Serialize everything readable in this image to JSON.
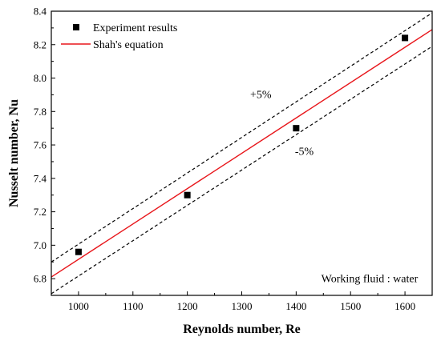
{
  "chart_data": {
    "type": "line",
    "xlabel": "Reynolds number, Re",
    "ylabel": "Nusselt number, Nu",
    "xlim": [
      950,
      1650
    ],
    "ylim": [
      6.7,
      8.4
    ],
    "x_ticks": [
      1000,
      1100,
      1200,
      1300,
      1400,
      1500,
      1600
    ],
    "x_tick_labels": [
      "1000",
      "1100",
      "1200",
      "1300",
      "1400",
      "1500",
      "1600"
    ],
    "y_ticks": [
      6.8,
      7.0,
      7.2,
      7.4,
      7.6,
      7.8,
      8.0,
      8.2,
      8.4
    ],
    "y_tick_labels": [
      "6.8",
      "7.0",
      "7.2",
      "7.4",
      "7.6",
      "7.8",
      "8.0",
      "8.2",
      "8.4"
    ],
    "grid": false,
    "legend_position": "top-left",
    "series": [
      {
        "name": "Experiment results",
        "kind": "scatter",
        "marker": "square",
        "color": "#000000",
        "x": [
          1000,
          1200,
          1400,
          1600
        ],
        "y": [
          6.96,
          7.3,
          7.7,
          8.24
        ]
      },
      {
        "name": "Shah's equation",
        "kind": "line",
        "color": "#e8161b",
        "x": [
          950,
          1650
        ],
        "y": [
          6.81,
          8.29
        ]
      },
      {
        "kind": "line",
        "style": "dashed",
        "color": "#000000",
        "x": [
          950,
          1650
        ],
        "y": [
          6.9,
          8.39
        ]
      },
      {
        "kind": "line",
        "style": "dashed",
        "color": "#000000",
        "x": [
          950,
          1650
        ],
        "y": [
          6.71,
          8.19
        ]
      }
    ],
    "annotations": [
      {
        "text": "+5%",
        "x": 1335,
        "y": 7.88
      },
      {
        "text": "-5%",
        "x": 1415,
        "y": 7.54
      },
      {
        "text": "Working fluid : water",
        "x": 1535,
        "y": 6.78
      }
    ]
  }
}
